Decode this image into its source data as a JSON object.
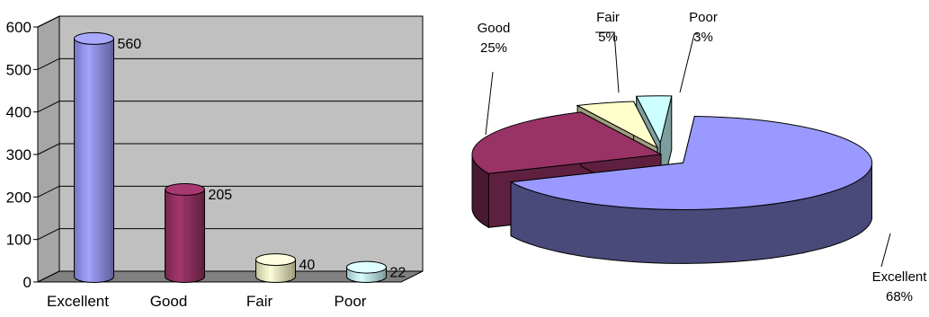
{
  "chart_data": [
    {
      "type": "bar",
      "categories": [
        "Excellent",
        "Good",
        "Fair",
        "Poor"
      ],
      "values": [
        560,
        205,
        40,
        22
      ],
      "value_labels": [
        "560",
        "205",
        "40",
        "22"
      ],
      "ylim": [
        0,
        600
      ],
      "yticks": [
        "0",
        "100",
        "200",
        "300",
        "400",
        "500",
        "600"
      ],
      "grid": true,
      "colors": [
        "#9999ff",
        "#993366",
        "#ffffcc",
        "#ccffff"
      ]
    },
    {
      "type": "pie",
      "labels": [
        "Excellent",
        "Good",
        "Fair",
        "Poor"
      ],
      "percent_labels": [
        "68%",
        "25%",
        "5%",
        "3%"
      ],
      "values": [
        68,
        25,
        5,
        3
      ],
      "colors": [
        "#9999ff",
        "#993366",
        "#ffffcc",
        "#ccffff"
      ]
    }
  ]
}
